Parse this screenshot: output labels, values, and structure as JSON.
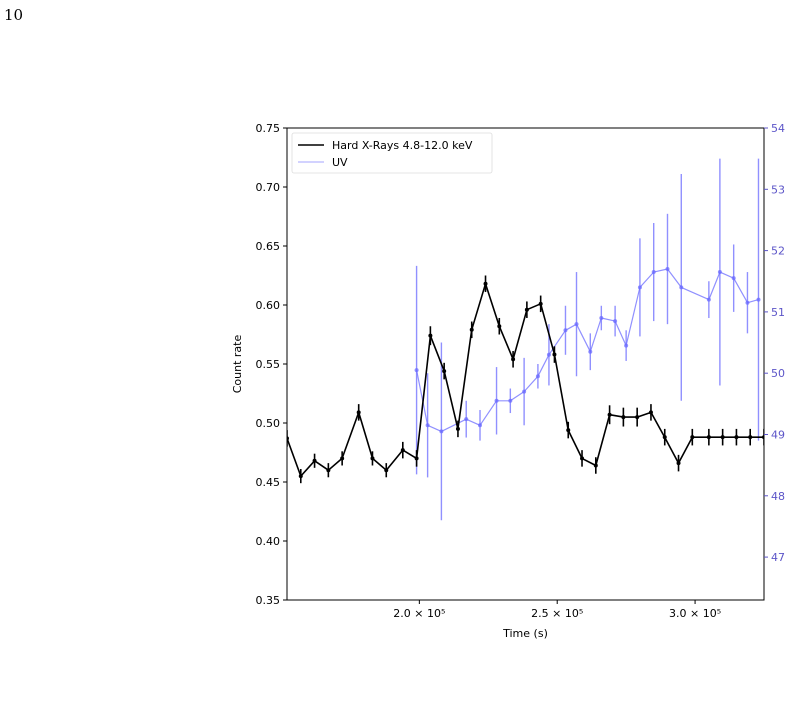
{
  "page_number": "10",
  "colors": {
    "xray": "#000000",
    "uv": "#6b6bff",
    "uv_axis": "#5c55c8"
  },
  "chart_data": {
    "type": "line",
    "xlabel": "Time (s)",
    "ylabel": "Count rate",
    "xlim": [
      152000,
      325000
    ],
    "ylim": [
      0.35,
      0.75
    ],
    "y2lim": [
      46.3,
      54.0
    ],
    "x_ticks": [
      200000,
      250000,
      300000
    ],
    "x_tick_labels": [
      "2.0 × 10⁵",
      "2.5 × 10⁵",
      "3.0 × 10⁵"
    ],
    "y_ticks": [
      0.35,
      0.4,
      0.45,
      0.5,
      0.55,
      0.6,
      0.65,
      0.7,
      0.75
    ],
    "y_tick_labels": [
      "0.35",
      "0.40",
      "0.45",
      "0.50",
      "0.55",
      "0.60",
      "0.65",
      "0.70",
      "0.75"
    ],
    "y2_ticks": [
      47,
      48,
      49,
      50,
      51,
      52,
      53,
      54
    ],
    "y2_tick_labels": [
      "47",
      "48",
      "49",
      "50",
      "51",
      "52",
      "53",
      "54"
    ],
    "legend_position": "top-left",
    "series": [
      {
        "name": "Hard X-Rays 4.8-12.0 keV",
        "axis": "left",
        "x": [
          152000,
          157000,
          162000,
          167000,
          172000,
          178000,
          183000,
          188000,
          194000,
          199000,
          204000,
          209000,
          214000,
          219000,
          224000,
          229000,
          234000,
          239000,
          244000,
          249000,
          254000,
          259000,
          264000,
          269000,
          274000,
          279000,
          284000,
          289000,
          294000,
          299000,
          305000,
          310000,
          315000,
          320000,
          325000
        ],
        "y": [
          0.487,
          0.455,
          0.468,
          0.46,
          0.47,
          0.509,
          0.47,
          0.46,
          0.477,
          0.47,
          0.574,
          0.544,
          0.495,
          0.579,
          0.618,
          0.582,
          0.554,
          0.596,
          0.601,
          0.558,
          0.494,
          0.47,
          0.464,
          0.507,
          0.505,
          0.505,
          0.509,
          0.488,
          0.466,
          0.488,
          0.488,
          0.488,
          0.488,
          0.488,
          0.488
        ],
        "yerr": [
          0.007,
          0.006,
          0.006,
          0.006,
          0.006,
          0.007,
          0.006,
          0.006,
          0.007,
          0.007,
          0.008,
          0.007,
          0.007,
          0.007,
          0.007,
          0.007,
          0.007,
          0.007,
          0.007,
          0.007,
          0.007,
          0.007,
          0.007,
          0.008,
          0.008,
          0.008,
          0.007,
          0.007,
          0.007,
          0.007,
          0.007,
          0.007,
          0.007,
          0.007,
          0.007
        ]
      },
      {
        "name": "UV",
        "axis": "right",
        "x": [
          199000,
          203000,
          208000,
          217000,
          222000,
          228000,
          233000,
          238000,
          243000,
          247000,
          253000,
          257000,
          262000,
          266000,
          271000,
          275000,
          280000,
          285000,
          290000,
          295000,
          305000,
          309000,
          314000,
          319000,
          323000
        ],
        "y": [
          50.05,
          49.15,
          49.05,
          49.25,
          49.15,
          49.55,
          49.55,
          49.7,
          49.95,
          50.3,
          50.7,
          50.8,
          50.35,
          50.9,
          50.85,
          50.45,
          51.4,
          51.65,
          51.7,
          51.4,
          51.2,
          51.65,
          51.55,
          51.15,
          51.2
        ],
        "yerr": [
          1.7,
          0.85,
          1.45,
          0.3,
          0.25,
          0.55,
          0.2,
          0.55,
          0.2,
          0.5,
          0.4,
          0.85,
          0.3,
          0.2,
          0.25,
          0.25,
          0.8,
          0.8,
          0.9,
          1.85,
          0.3,
          1.85,
          0.55,
          0.5,
          2.3
        ]
      }
    ]
  }
}
